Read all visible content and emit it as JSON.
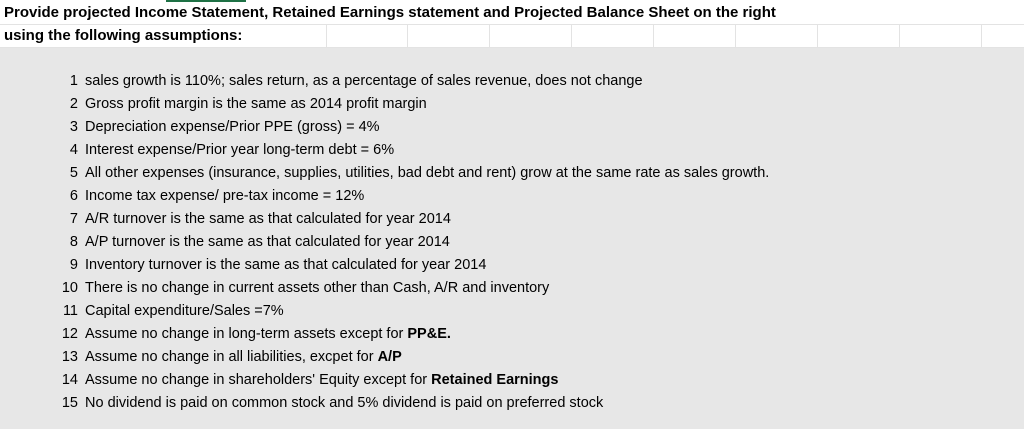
{
  "header": {
    "line1": "Provide projected Income Statement, Retained Earnings statement and Projected Balance Sheet on the right",
    "line2": "using the following assumptions:"
  },
  "assumptions": [
    {
      "num": "1",
      "text": "sales growth is 110%; sales return, as a percentage of sales revenue, does not change",
      "bold": ""
    },
    {
      "num": "2",
      "text": "Gross profit margin is the same as 2014 profit margin",
      "bold": ""
    },
    {
      "num": "3",
      "text": "Depreciation expense/Prior PPE (gross) = 4%",
      "bold": ""
    },
    {
      "num": "4",
      "text": "Interest expense/Prior year long-term debt = 6%",
      "bold": ""
    },
    {
      "num": "5",
      "text": "All other expenses (insurance, supplies, utilities, bad debt and rent) grow at the same rate as sales growth.",
      "bold": ""
    },
    {
      "num": "6",
      "text": "Income tax expense/ pre-tax income = 12%",
      "bold": ""
    },
    {
      "num": "7",
      "text": "A/R turnover is the same as that calculated for year 2014",
      "bold": ""
    },
    {
      "num": "8",
      "text": "A/P turnover is the same as that calculated for year 2014",
      "bold": ""
    },
    {
      "num": "9",
      "text": "Inventory turnover is the same as that calculated for year 2014",
      "bold": ""
    },
    {
      "num": "10",
      "text": "There is no change in current assets other than Cash, A/R and inventory",
      "bold": ""
    },
    {
      "num": "11",
      "text": "Capital expenditure/Sales =7%",
      "bold": ""
    },
    {
      "num": "12",
      "text": "Assume no change in long-term assets except for ",
      "bold": "PP&E."
    },
    {
      "num": "13",
      "text": "Assume no change in all liabilities, excpet for ",
      "bold": "A/P"
    },
    {
      "num": "14",
      "text": "Assume no change in shareholders' Equity except for ",
      "bold": "Retained Earnings"
    },
    {
      "num": "15",
      "text": "No dividend is paid on common stock and 5% dividend is paid on preferred stock",
      "bold": ""
    }
  ]
}
